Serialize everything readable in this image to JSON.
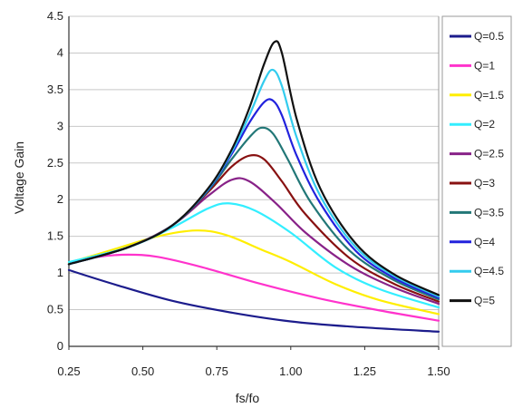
{
  "chart_data": {
    "type": "line",
    "title": "",
    "xlabel": "fs/fo",
    "ylabel": "Voltage Gain",
    "xlim": [
      0.25,
      1.5
    ],
    "ylim": [
      0,
      4.5
    ],
    "x_ticks": [
      "0.25",
      "0.50",
      "0.75",
      "1.00",
      "1.25",
      "1.50"
    ],
    "y_ticks": [
      "0",
      "0.5",
      "1",
      "1.5",
      "2",
      "2.5",
      "3",
      "3.5",
      "4",
      "4.5"
    ],
    "grid": "horizontal",
    "legend_position": "right",
    "series": [
      {
        "name": "Q=0.5",
        "color": "#1c1c8c",
        "points": [
          [
            0.25,
            1.04
          ],
          [
            0.4,
            0.85
          ],
          [
            0.6,
            0.62
          ],
          [
            0.8,
            0.46
          ],
          [
            1.0,
            0.34
          ],
          [
            1.2,
            0.27
          ],
          [
            1.5,
            0.2
          ]
        ]
      },
      {
        "name": "Q=1",
        "color": "#ff33cc",
        "points": [
          [
            0.25,
            1.13
          ],
          [
            0.35,
            1.22
          ],
          [
            0.45,
            1.25
          ],
          [
            0.55,
            1.22
          ],
          [
            0.7,
            1.08
          ],
          [
            0.9,
            0.85
          ],
          [
            1.1,
            0.65
          ],
          [
            1.3,
            0.49
          ],
          [
            1.5,
            0.35
          ]
        ]
      },
      {
        "name": "Q=1.5",
        "color": "#ffee00",
        "points": [
          [
            0.25,
            1.14
          ],
          [
            0.4,
            1.32
          ],
          [
            0.55,
            1.5
          ],
          [
            0.68,
            1.58
          ],
          [
            0.78,
            1.52
          ],
          [
            0.9,
            1.32
          ],
          [
            1.0,
            1.15
          ],
          [
            1.15,
            0.85
          ],
          [
            1.3,
            0.63
          ],
          [
            1.5,
            0.44
          ]
        ]
      },
      {
        "name": "Q=2",
        "color": "#33eeff",
        "points": [
          [
            0.25,
            1.15
          ],
          [
            0.45,
            1.35
          ],
          [
            0.6,
            1.62
          ],
          [
            0.72,
            1.88
          ],
          [
            0.79,
            1.95
          ],
          [
            0.88,
            1.85
          ],
          [
            1.0,
            1.55
          ],
          [
            1.15,
            1.08
          ],
          [
            1.3,
            0.78
          ],
          [
            1.5,
            0.53
          ]
        ]
      },
      {
        "name": "Q=2.5",
        "color": "#882288",
        "points": [
          [
            0.25,
            1.12
          ],
          [
            0.45,
            1.35
          ],
          [
            0.6,
            1.65
          ],
          [
            0.72,
            2.05
          ],
          [
            0.8,
            2.27
          ],
          [
            0.86,
            2.25
          ],
          [
            0.95,
            1.95
          ],
          [
            1.05,
            1.55
          ],
          [
            1.2,
            1.1
          ],
          [
            1.35,
            0.8
          ],
          [
            1.5,
            0.58
          ]
        ]
      },
      {
        "name": "Q=3",
        "color": "#881111",
        "points": [
          [
            0.25,
            1.12
          ],
          [
            0.45,
            1.35
          ],
          [
            0.6,
            1.65
          ],
          [
            0.72,
            2.1
          ],
          [
            0.8,
            2.45
          ],
          [
            0.86,
            2.6
          ],
          [
            0.91,
            2.55
          ],
          [
            0.97,
            2.25
          ],
          [
            1.05,
            1.8
          ],
          [
            1.2,
            1.2
          ],
          [
            1.35,
            0.85
          ],
          [
            1.5,
            0.61
          ]
        ]
      },
      {
        "name": "Q=3.5",
        "color": "#227777",
        "points": [
          [
            0.25,
            1.12
          ],
          [
            0.45,
            1.35
          ],
          [
            0.6,
            1.65
          ],
          [
            0.72,
            2.12
          ],
          [
            0.8,
            2.55
          ],
          [
            0.86,
            2.85
          ],
          [
            0.9,
            2.98
          ],
          [
            0.94,
            2.9
          ],
          [
            0.99,
            2.55
          ],
          [
            1.07,
            1.95
          ],
          [
            1.2,
            1.3
          ],
          [
            1.35,
            0.9
          ],
          [
            1.5,
            0.64
          ]
        ]
      },
      {
        "name": "Q=4",
        "color": "#2222dd",
        "points": [
          [
            0.25,
            1.12
          ],
          [
            0.45,
            1.35
          ],
          [
            0.6,
            1.65
          ],
          [
            0.72,
            2.13
          ],
          [
            0.8,
            2.62
          ],
          [
            0.86,
            3.05
          ],
          [
            0.91,
            3.33
          ],
          [
            0.94,
            3.35
          ],
          [
            0.97,
            3.15
          ],
          [
            1.02,
            2.6
          ],
          [
            1.1,
            1.95
          ],
          [
            1.22,
            1.3
          ],
          [
            1.35,
            0.93
          ],
          [
            1.5,
            0.66
          ]
        ]
      },
      {
        "name": "Q=4.5",
        "color": "#33ccee",
        "points": [
          [
            0.25,
            1.12
          ],
          [
            0.45,
            1.35
          ],
          [
            0.6,
            1.65
          ],
          [
            0.72,
            2.14
          ],
          [
            0.8,
            2.65
          ],
          [
            0.86,
            3.15
          ],
          [
            0.91,
            3.62
          ],
          [
            0.94,
            3.77
          ],
          [
            0.97,
            3.55
          ],
          [
            1.02,
            2.85
          ],
          [
            1.1,
            2.05
          ],
          [
            1.22,
            1.35
          ],
          [
            1.35,
            0.96
          ],
          [
            1.5,
            0.68
          ]
        ]
      },
      {
        "name": "Q=5",
        "color": "#111111",
        "points": [
          [
            0.25,
            1.12
          ],
          [
            0.45,
            1.35
          ],
          [
            0.6,
            1.65
          ],
          [
            0.72,
            2.15
          ],
          [
            0.8,
            2.68
          ],
          [
            0.86,
            3.25
          ],
          [
            0.91,
            3.85
          ],
          [
            0.945,
            4.15
          ],
          [
            0.97,
            4.0
          ],
          [
            1.02,
            3.1
          ],
          [
            1.1,
            2.15
          ],
          [
            1.22,
            1.4
          ],
          [
            1.35,
            0.98
          ],
          [
            1.5,
            0.7
          ]
        ]
      }
    ]
  }
}
